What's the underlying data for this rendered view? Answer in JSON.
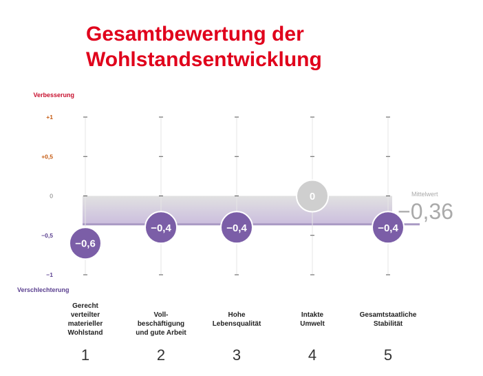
{
  "title_line1": "Gesamtbewertung der",
  "title_line2": "Wohlstandsentwicklung",
  "colors": {
    "title": "#e0001b",
    "bubble": "#7b5ea7",
    "bubble_neutral": "#cfcfcf",
    "band_top": "#dcdcdc",
    "band_bottom": "#c2b2d8",
    "mean_line": "#a99ac4",
    "label_positive": "#c55a11",
    "label_negative": "#5a3f8f",
    "label_top": "#c8102e"
  },
  "chart_data": {
    "type": "scatter",
    "title": "Gesamtbewertung der Wohlstandsentwicklung",
    "ylim": [
      -1,
      1
    ],
    "yticks": [
      {
        "value": 1,
        "label": "+1"
      },
      {
        "value": 0.5,
        "label": "+0,5"
      },
      {
        "value": 0,
        "label": "0"
      },
      {
        "value": -0.5,
        "label": "−0,5"
      },
      {
        "value": -1,
        "label": "−1"
      }
    ],
    "ylabel_top": "Verbesserung",
    "ylabel_bottom": "Verschlechterung",
    "categories": [
      {
        "number": "1",
        "lines": [
          "Gerecht",
          "verteilter",
          "materieller",
          "Wohlstand"
        ],
        "value": -0.6,
        "label": "−0,6"
      },
      {
        "number": "2",
        "lines": [
          "Voll-",
          "beschäftigung",
          "und gute Arbeit"
        ],
        "value": -0.4,
        "label": "−0,4"
      },
      {
        "number": "3",
        "lines": [
          "Hohe",
          "Lebensqualität"
        ],
        "value": -0.4,
        "label": "−0,4"
      },
      {
        "number": "4",
        "lines": [
          "Intakte",
          "Umwelt"
        ],
        "value": 0,
        "label": "0"
      },
      {
        "number": "5",
        "lines": [
          "Gesamtstaatliche",
          "Stabilität"
        ],
        "value": -0.4,
        "label": "−0,4"
      }
    ],
    "mean": {
      "label": "Mittelwert",
      "value": -0.36,
      "value_label": "−0,36"
    }
  }
}
